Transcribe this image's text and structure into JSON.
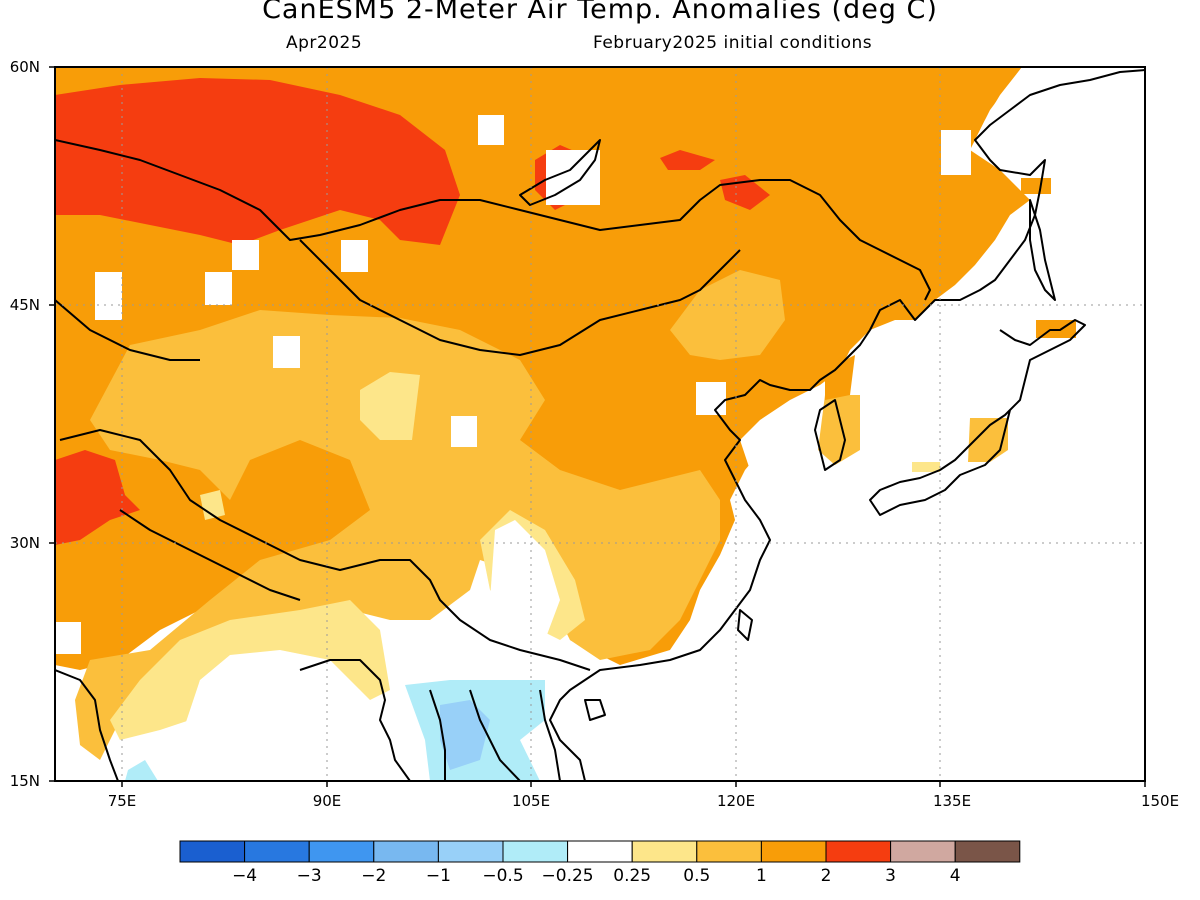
{
  "header": {
    "title": "CanESM5 2-Meter Air Temp. Anomalies (deg C)",
    "valid_month": "Apr2025",
    "initial_conditions": "February2025 initial conditions"
  },
  "map": {
    "lon_range": [
      70,
      150
    ],
    "lat_range": [
      15,
      60
    ],
    "lon_labels": [
      "75E",
      "90E",
      "105E",
      "120E",
      "135E",
      "150E"
    ],
    "lat_labels": [
      "60N",
      "45N",
      "30N",
      "15N"
    ],
    "gridlines": "dotted at 15-degree intervals"
  },
  "legend": {
    "bins": [
      {
        "color": "#1a5fd0"
      },
      {
        "color": "#2878e0"
      },
      {
        "color": "#3f96f0"
      },
      {
        "color": "#78b8f0"
      },
      {
        "color": "#98d0f8"
      },
      {
        "color": "#b0ecf8"
      },
      {
        "color": "#ffffff"
      },
      {
        "color": "#fde68a"
      },
      {
        "color": "#fbbf3c"
      },
      {
        "color": "#f89d08"
      },
      {
        "color": "#f53d10"
      },
      {
        "color": "#d0a8a0"
      },
      {
        "color": "#7a5548"
      }
    ],
    "labels": [
      "-4",
      "-3",
      "-2",
      "-1",
      "-0.5",
      "-0.25",
      "0.25",
      "0.5",
      "1",
      "2",
      "3",
      "4"
    ]
  }
}
